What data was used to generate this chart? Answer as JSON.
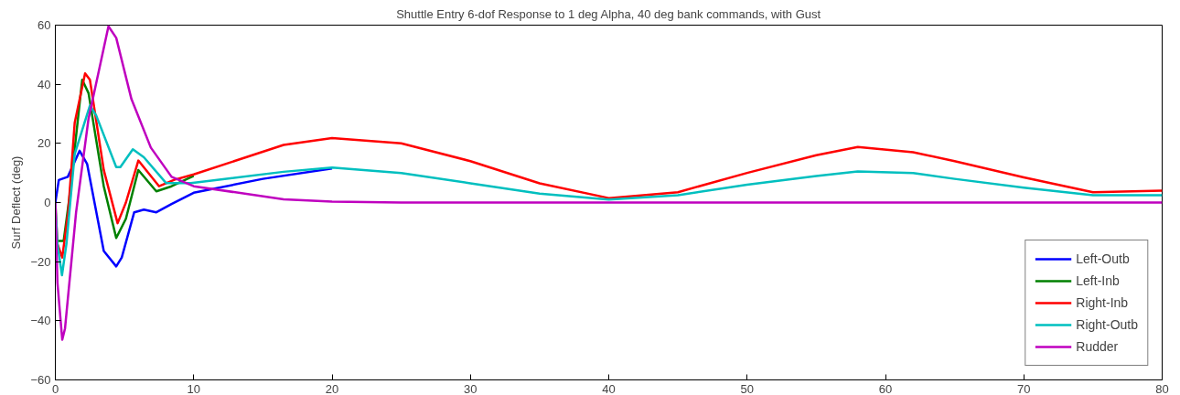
{
  "chart_data": {
    "type": "line",
    "title": "Shuttle Entry 6-dof Response to 1 deg Alpha, 40 deg bank commands, with Gust",
    "ylabel": "Surf Deflect (deg)",
    "xlim": [
      0,
      80
    ],
    "ylim": [
      -60,
      60
    ],
    "xticks": [
      0,
      10,
      20,
      30,
      40,
      50,
      60,
      70,
      80
    ],
    "yticks": [
      -60,
      -40,
      -20,
      0,
      20,
      40,
      60
    ],
    "grid": false,
    "legend": "bottom right",
    "line_style": "solid",
    "marker": "none",
    "series": [
      {
        "name": "Left-Outb",
        "color": "#0000ff",
        "x": [
          0,
          0.25,
          0.9,
          1.75,
          2.3,
          3.5,
          4.4,
          4.8,
          5.7,
          6.4,
          7.3,
          8.4,
          10,
          15,
          20
        ],
        "values": [
          0,
          7.6,
          8.7,
          17.5,
          13,
          -16.4,
          -21.6,
          -18.6,
          -3.3,
          -2.4,
          -3.3,
          -0.5,
          3.3,
          8,
          11.5
        ]
      },
      {
        "name": "Left-Inb",
        "color": "#008000",
        "x": [
          0.15,
          0.6,
          1.0,
          1.94,
          2.4,
          3.5,
          4.4,
          5.1,
          6,
          7.3,
          8.4,
          10
        ],
        "values": [
          -13,
          -13,
          1,
          41.5,
          37,
          5.5,
          -12,
          -5.5,
          11,
          3.8,
          5.5,
          9
        ]
      },
      {
        "name": "Right-Inb",
        "color": "#ff0000",
        "x": [
          0,
          0.15,
          0.5,
          0.93,
          1.4,
          2.15,
          2.5,
          3.5,
          4.5,
          5.1,
          6,
          7.5,
          8.6,
          10,
          16.5,
          20,
          25,
          30,
          35,
          40,
          45,
          50,
          55,
          58,
          62,
          65,
          70,
          75,
          80
        ],
        "values": [
          0,
          -14,
          -18.6,
          -3.3,
          27,
          43.7,
          41.5,
          11,
          -7,
          0,
          14.2,
          5.5,
          7.7,
          9.5,
          19.5,
          21.8,
          20,
          14,
          6.5,
          1.5,
          3.5,
          10,
          16,
          18.8,
          17,
          14,
          8.5,
          3.5,
          4
        ]
      },
      {
        "name": "Right-Outb",
        "color": "#00bfbf",
        "x": [
          0,
          0.15,
          0.48,
          0.8,
          1.4,
          2.5,
          2.95,
          4.4,
          4.7,
          5.6,
          6.4,
          8,
          9.8,
          16.5,
          20,
          25,
          30,
          35,
          40,
          45,
          50,
          55,
          58,
          62,
          65,
          70,
          75,
          80
        ],
        "values": [
          0,
          -14,
          -24.6,
          -14,
          16.4,
          32.8,
          29.5,
          12,
          12,
          18,
          15.3,
          6.6,
          6.6,
          10.4,
          11.8,
          10,
          6.5,
          3,
          1,
          2.5,
          6,
          9,
          10.5,
          10,
          8,
          5,
          2.5,
          2.5
        ]
      },
      {
        "name": "Rudder",
        "color": "#bf00bf",
        "x": [
          0,
          0.15,
          0.5,
          0.7,
          1.5,
          2.4,
          3.84,
          4.4,
          5.5,
          6.9,
          8.4,
          10,
          16.5,
          20,
          25,
          80
        ],
        "values": [
          0,
          -27,
          -46.4,
          -42.6,
          -3.3,
          28.4,
          59.6,
          55.7,
          35,
          18.6,
          8.7,
          5.5,
          1.1,
          0.3,
          0,
          0
        ]
      }
    ]
  }
}
